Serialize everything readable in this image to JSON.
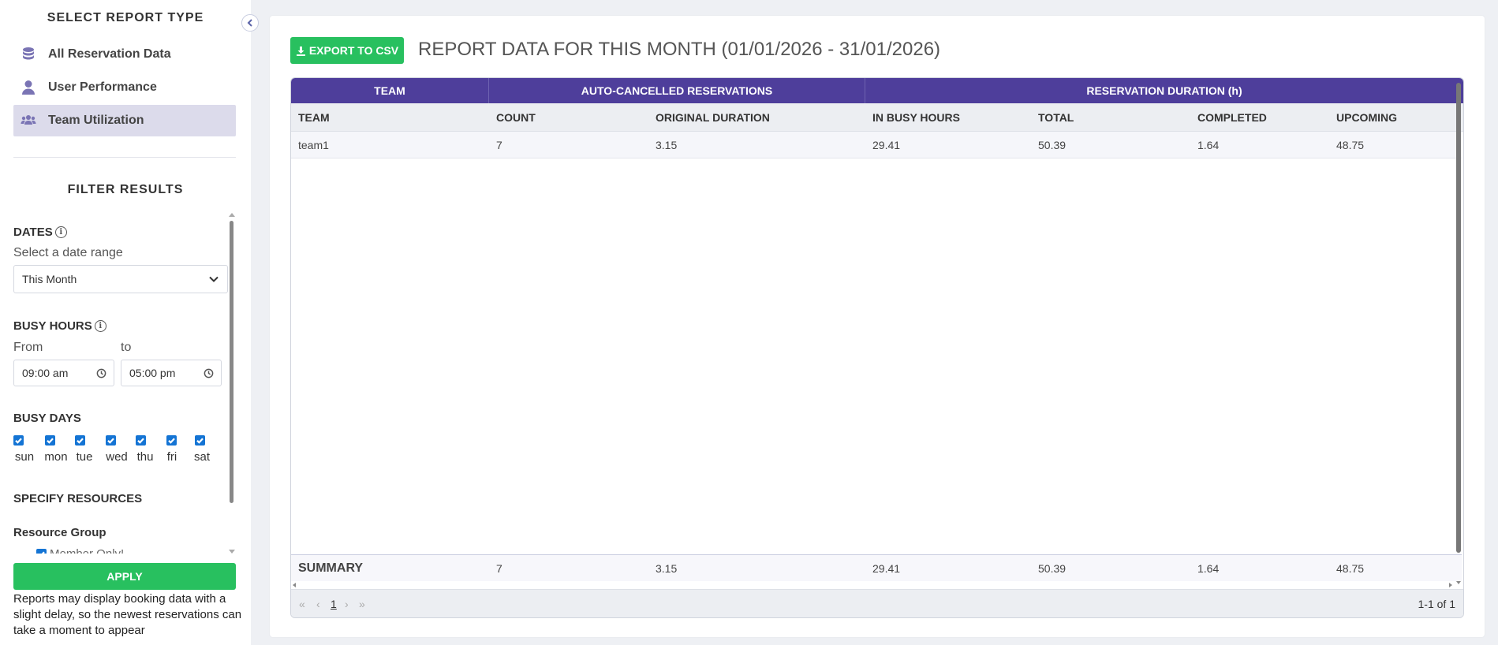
{
  "sidebar": {
    "select_report_title": "SELECT REPORT TYPE",
    "report_types": [
      {
        "label": "All Reservation Data",
        "icon": "database-icon"
      },
      {
        "label": "User Performance",
        "icon": "user-icon"
      },
      {
        "label": "Team Utilization",
        "icon": "users-group-icon",
        "active": true
      }
    ],
    "filter_title": "FILTER RESULTS",
    "dates": {
      "heading": "DATES",
      "label": "Select a date range",
      "selected": "This Month"
    },
    "busy_hours": {
      "heading": "BUSY HOURS",
      "from_label": "From",
      "to_label": "to",
      "from_value": "09:00 am",
      "to_value": "05:00 pm"
    },
    "busy_days": {
      "heading": "BUSY DAYS",
      "days": [
        "sun",
        "mon",
        "tue",
        "wed",
        "thu",
        "fri",
        "sat"
      ]
    },
    "specify_resources": "SPECIFY RESOURCES",
    "resource_group": "Resource Group",
    "member_only": "Member Only!",
    "apply_label": "APPLY",
    "note": "Reports may display booking data with a slight delay, so the newest reservations can take a moment to appear"
  },
  "main": {
    "export_label": "EXPORT TO CSV",
    "title": "REPORT DATA FOR THIS MONTH (01/01/2026 - 31/01/2026)",
    "group_headers": [
      "TEAM",
      "AUTO-CANCELLED RESERVATIONS",
      "RESERVATION DURATION (h)"
    ],
    "columns": [
      "TEAM",
      "COUNT",
      "ORIGINAL DURATION",
      "IN BUSY HOURS",
      "TOTAL",
      "COMPLETED",
      "UPCOMING"
    ],
    "rows": [
      [
        "team1",
        "7",
        "3.15",
        "29.41",
        "50.39",
        "1.64",
        "48.75"
      ]
    ],
    "summary": [
      "SUMMARY",
      "7",
      "3.15",
      "29.41",
      "50.39",
      "1.64",
      "48.75"
    ],
    "pager": {
      "first": "«",
      "prev": "‹",
      "page": "1",
      "next": "›",
      "last": "»",
      "info": "1-1 of 1"
    }
  },
  "colors": {
    "accent_purple": "#4e3e9b",
    "green": "#28c05f",
    "checkbox_blue": "#1474d4"
  }
}
